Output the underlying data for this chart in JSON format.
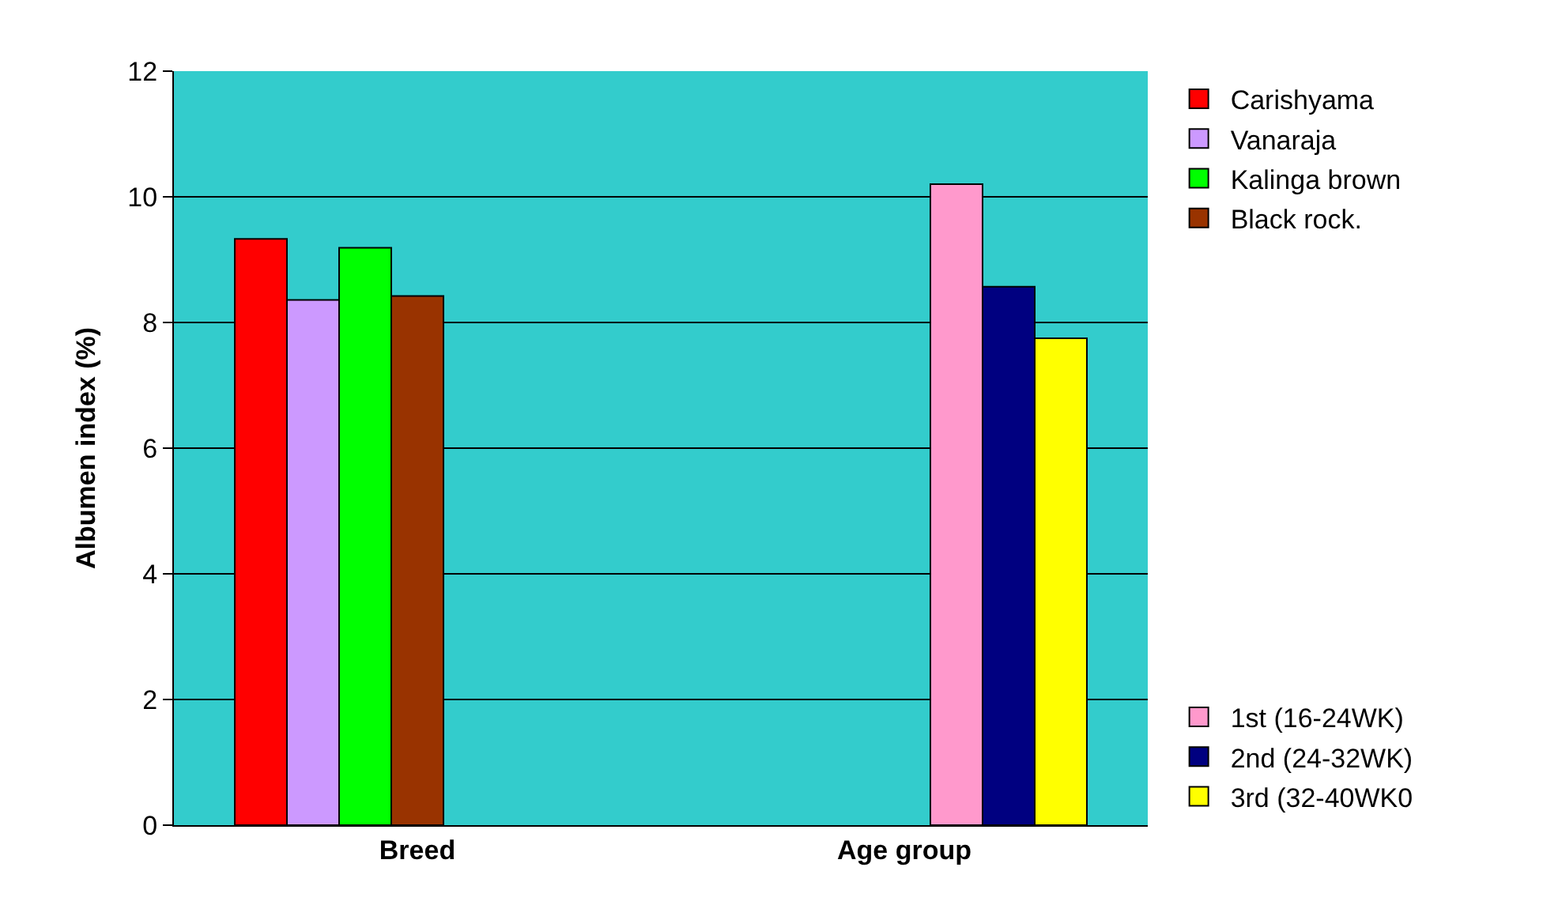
{
  "chart_data": {
    "type": "bar",
    "ylabel": "Albumen index (%)",
    "categories": [
      "Breed",
      "Age group"
    ],
    "series": [
      {
        "name": "Carishyama",
        "color": "#ff0000",
        "values": [
          9.33,
          null
        ]
      },
      {
        "name": "Vanaraja",
        "color": "#cc99ff",
        "values": [
          8.36,
          null
        ]
      },
      {
        "name": "Kalinga brown",
        "color": "#00ff00",
        "values": [
          9.19,
          null
        ]
      },
      {
        "name": "Black rock.",
        "color": "#993300",
        "values": [
          8.42,
          null
        ]
      },
      {
        "name": "1st (16-24WK)",
        "color": "#ff99cc",
        "values": [
          null,
          10.2
        ]
      },
      {
        "name": "2nd (24-32WK)",
        "color": "#000080",
        "values": [
          null,
          8.57
        ]
      },
      {
        "name": "3rd (32-40WK0",
        "color": "#ffff00",
        "values": [
          null,
          7.75
        ]
      }
    ],
    "ylim": [
      0,
      12
    ],
    "yticks": [
      0,
      2,
      4,
      6,
      8,
      10,
      12
    ],
    "grid": "y",
    "legend": "right"
  }
}
